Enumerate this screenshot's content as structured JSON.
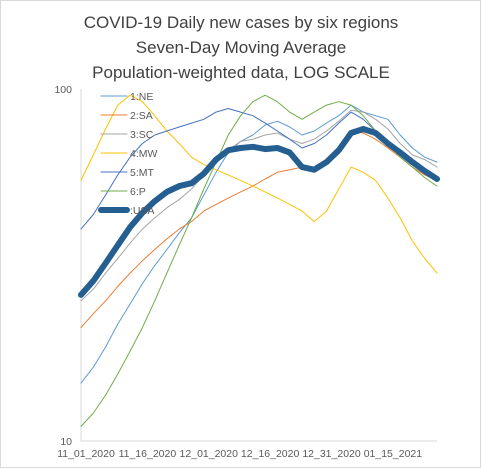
{
  "chart_data": {
    "type": "line",
    "title": [
      "COVID-19 Daily new cases by six regions",
      "Seven-Day Moving Average",
      "Population-weighted data, LOG SCALE"
    ],
    "xlabel": "",
    "ylabel": "",
    "y_scale": "log",
    "ylim": [
      10,
      100
    ],
    "y_ticks": [
      "100",
      "10"
    ],
    "x_ticks": [
      "11_01_2020",
      "11_16_2020",
      "12_01_2020",
      "12_16_2020",
      "12_31_2020",
      "01_15_2021"
    ],
    "grid": false,
    "legend_position": "top-left inside",
    "x": [
      "11_01_2020",
      "11_04_2020",
      "11_07_2020",
      "11_10_2020",
      "11_13_2020",
      "11_16_2020",
      "11_19_2020",
      "11_22_2020",
      "11_25_2020",
      "11_28_2020",
      "12_01_2020",
      "12_04_2020",
      "12_07_2020",
      "12_10_2020",
      "12_13_2020",
      "12_16_2020",
      "12_19_2020",
      "12_22_2020",
      "12_25_2020",
      "12_28_2020",
      "12_31_2020",
      "01_03_2021",
      "01_06_2021",
      "01_09_2021",
      "01_12_2021",
      "01_15_2021",
      "01_18_2021",
      "01_21_2021",
      "01_24_2021",
      "01_27_2021"
    ],
    "series": [
      {
        "name": "1:NE",
        "color": "#5b9bd5",
        "width": 1,
        "values": [
          14.6,
          16.2,
          18.5,
          21.5,
          24.5,
          28.0,
          31.5,
          35.0,
          39.0,
          43.0,
          50.0,
          58.0,
          66.0,
          71.0,
          74.0,
          79.0,
          81.0,
          78.0,
          74.0,
          76.0,
          80.0,
          84.0,
          90.0,
          86.0,
          84.0,
          82.0,
          74.0,
          68.0,
          64.0,
          62.0
        ]
      },
      {
        "name": "2:SA",
        "color": "#ed7d31",
        "width": 1,
        "values": [
          21.0,
          23.0,
          25.0,
          27.5,
          30.0,
          32.5,
          35.0,
          37.5,
          40.0,
          42.0,
          45.0,
          47.0,
          49.0,
          51.0,
          53.0,
          55.5,
          58.0,
          59.0,
          60.0,
          58.0,
          62.0,
          68.0,
          76.0,
          75.0,
          72.0,
          68.0,
          64.0,
          60.0,
          57.0,
          55.0
        ]
      },
      {
        "name": "3:SC",
        "color": "#a5a5a5",
        "width": 1,
        "values": [
          25.0,
          27.0,
          30.0,
          33.0,
          36.5,
          40.0,
          43.0,
          46.0,
          48.5,
          52.0,
          57.0,
          62.0,
          67.0,
          71.0,
          72.0,
          74.0,
          75.0,
          72.0,
          70.0,
          72.0,
          76.0,
          81.0,
          87.0,
          86.0,
          82.0,
          77.0,
          70.0,
          65.0,
          63.0,
          60.0
        ]
      },
      {
        "name": "4:MW",
        "color": "#ffc000",
        "width": 1,
        "values": [
          55.0,
          65.0,
          77.0,
          90.0,
          96.0,
          92.0,
          84.0,
          76.0,
          70.0,
          64.0,
          61.0,
          59.0,
          57.0,
          55.0,
          53.0,
          51.0,
          49.0,
          47.0,
          45.0,
          42.0,
          45.0,
          52.0,
          60.0,
          58.0,
          55.0,
          49.0,
          43.0,
          37.0,
          33.0,
          30.0
        ]
      },
      {
        "name": "5:MT",
        "color": "#4472c4",
        "width": 1,
        "values": [
          40.0,
          44.0,
          50.0,
          57.0,
          64.0,
          70.0,
          74.0,
          76.0,
          78.0,
          80.0,
          82.0,
          86.0,
          88.0,
          86.0,
          84.0,
          80.0,
          76.0,
          72.0,
          68.0,
          70.0,
          74.0,
          80.0,
          86.0,
          82.0,
          76.0,
          71.0,
          66.0,
          62.0,
          58.0,
          55.0
        ]
      },
      {
        "name": "6:P",
        "color": "#70ad47",
        "width": 1,
        "values": [
          11.0,
          12.0,
          13.5,
          15.5,
          18.0,
          21.0,
          25.0,
          30.0,
          36.0,
          43.0,
          52.0,
          62.0,
          74.0,
          84.0,
          92.0,
          96.0,
          92.0,
          86.0,
          82.0,
          86.0,
          90.0,
          92.0,
          90.0,
          84.0,
          76.0,
          70.0,
          64.0,
          60.0,
          56.0,
          53.0
        ]
      },
      {
        "name": ":USA",
        "color": "#255e91",
        "width": 6,
        "values": [
          26.0,
          28.5,
          32.0,
          36.0,
          40.5,
          44.5,
          48.0,
          51.0,
          53.0,
          54.0,
          57.5,
          63.0,
          67.0,
          68.0,
          68.5,
          67.5,
          68.0,
          66.0,
          60.0,
          59.0,
          62.0,
          67.0,
          75.0,
          77.0,
          75.0,
          70.0,
          66.0,
          62.0,
          58.5,
          55.5
        ]
      }
    ]
  }
}
